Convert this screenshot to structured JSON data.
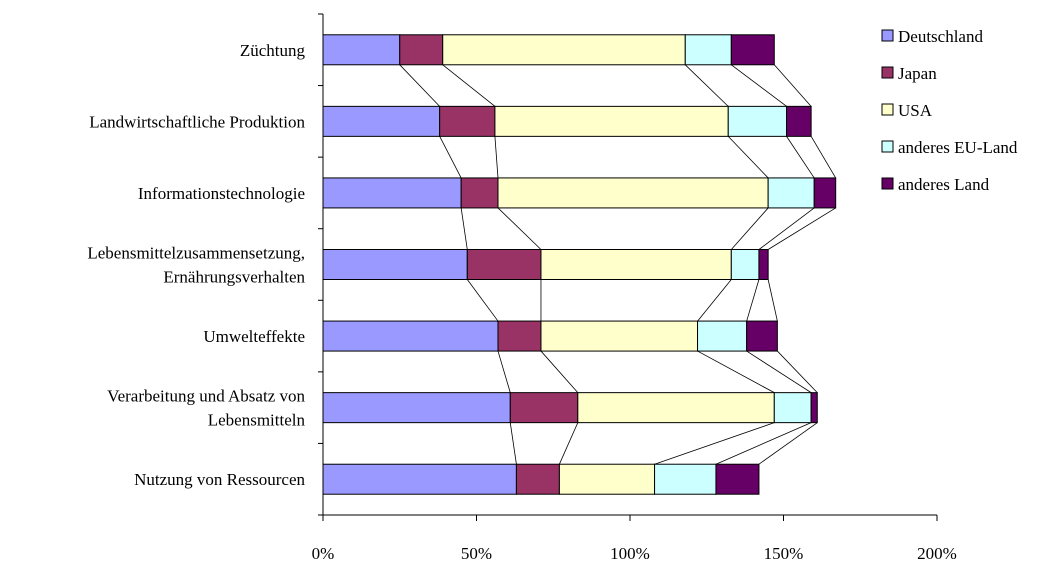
{
  "chart_data": {
    "type": "bar",
    "orientation": "horizontal",
    "stacked": true,
    "categories": [
      [
        "Züchtung"
      ],
      [
        "Landwirtschaftliche Produktion"
      ],
      [
        "Informationstechnologie"
      ],
      [
        "Lebensmittelzusammensetzung,",
        "Ernährungsverhalten"
      ],
      [
        "Umwelteffekte"
      ],
      [
        "Verarbeitung und Absatz von",
        "Lebensmitteln"
      ],
      [
        "Nutzung von Ressourcen"
      ]
    ],
    "series": [
      {
        "name": "Deutschland",
        "color": "#9999ff",
        "values": [
          25,
          38,
          45,
          47,
          57,
          61,
          63
        ]
      },
      {
        "name": "Japan",
        "color": "#993366",
        "values": [
          14,
          18,
          12,
          24,
          14,
          22,
          14
        ]
      },
      {
        "name": "USA",
        "color": "#ffffcc",
        "values": [
          79,
          76,
          88,
          62,
          51,
          64,
          31
        ]
      },
      {
        "name": "anderes EU-Land",
        "color": "#ccffff",
        "values": [
          15,
          19,
          15,
          9,
          16,
          12,
          20
        ]
      },
      {
        "name": "anderes Land",
        "color": "#660066",
        "values": [
          14,
          8,
          7,
          3,
          10,
          2,
          14
        ]
      }
    ],
    "xlim": [
      0,
      200
    ],
    "xticks": [
      "0%",
      "50%",
      "100%",
      "150%",
      "200%"
    ],
    "series_lines": true,
    "grid": false,
    "legend_position": "top-right",
    "title": "",
    "xlabel": "",
    "ylabel": ""
  }
}
